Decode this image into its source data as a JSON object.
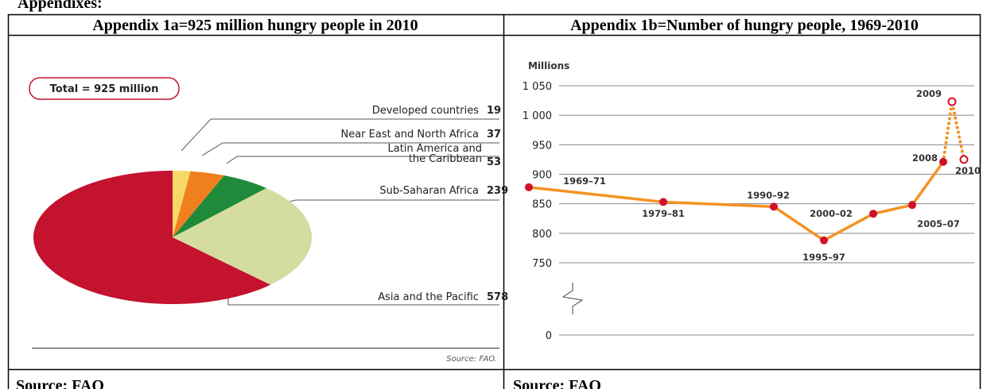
{
  "document": {
    "heading": "Appendixes:",
    "headers": [
      "Appendix 1a=925 million hungry people in 2010",
      "Appendix 1b=Number of hungry people, 1969-2010"
    ],
    "footers": [
      "Source: FAO",
      "Source: FAO"
    ]
  },
  "chart_data": [
    {
      "type": "pie",
      "annotation": "Total = 925 million",
      "source": "Source: FAO.",
      "categories": [
        "Developed countries",
        "Near East and North Africa",
        "Latin America and the Caribbean",
        "Sub-Saharan Africa",
        "Asia and the Pacific"
      ],
      "values": [
        19,
        37,
        53,
        239,
        578
      ],
      "colors": [
        "#f7d768",
        "#f07f1d",
        "#1e8a3a",
        "#d4dca0",
        "#c3132e"
      ],
      "start": "top",
      "direction": "clockwise"
    },
    {
      "type": "line",
      "y_label": "Millions",
      "categories": [
        "1969–71",
        "1979–81",
        "1990–92",
        "1995–97",
        "2000–02",
        "2005–07",
        "2008",
        "2009",
        "2010"
      ],
      "series": [
        {
          "color": "#f39224",
          "marker_color": "#d0112b",
          "values": [
            878,
            853,
            845,
            788,
            833,
            848,
            921,
            1023,
            925
          ]
        }
      ],
      "ylim": [
        0,
        1050
      ],
      "yticks": [
        0,
        750,
        800,
        850,
        900,
        950,
        {
          "value": 1000,
          "label": "1 000"
        },
        {
          "value": 1050,
          "label": "1 050"
        }
      ],
      "axis_break": true,
      "dotted_from": "2008",
      "grid": true
    }
  ]
}
